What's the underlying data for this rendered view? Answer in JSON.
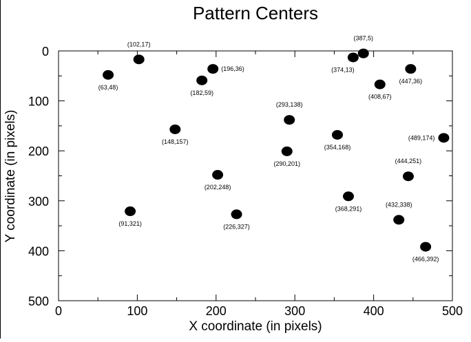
{
  "chart_data": {
    "type": "scatter",
    "title": "Pattern Centers",
    "xlabel": "X coordinate (in pixels)",
    "ylabel": "Y coordinate (in pixels)",
    "xlim": [
      0,
      500
    ],
    "ylim": [
      0,
      500
    ],
    "y_inverted": true,
    "grid": false,
    "xticks": [
      0,
      100,
      200,
      300,
      400,
      500
    ],
    "yticks": [
      0,
      100,
      200,
      300,
      400,
      500
    ],
    "x_minor_step": 50,
    "y_minor_step": 50,
    "marker_color": "#000000",
    "points": [
      {
        "x": 102,
        "y": 17,
        "label": "(102,17)",
        "label_pos": "above"
      },
      {
        "x": 387,
        "y": 5,
        "label": "(387,5)",
        "label_pos": "above"
      },
      {
        "x": 374,
        "y": 13,
        "label": "(374,13)",
        "label_pos": "below-left"
      },
      {
        "x": 63,
        "y": 48,
        "label": "(63,48)",
        "label_pos": "below"
      },
      {
        "x": 196,
        "y": 36,
        "label": "(196,36)",
        "label_pos": "right"
      },
      {
        "x": 182,
        "y": 59,
        "label": "(182,59)",
        "label_pos": "below"
      },
      {
        "x": 447,
        "y": 36,
        "label": "(447,36)",
        "label_pos": "below"
      },
      {
        "x": 408,
        "y": 67,
        "label": "(408,67)",
        "label_pos": "below"
      },
      {
        "x": 293,
        "y": 138,
        "label": "(293,138)",
        "label_pos": "above"
      },
      {
        "x": 148,
        "y": 157,
        "label": "(148,157)",
        "label_pos": "below"
      },
      {
        "x": 354,
        "y": 168,
        "label": "(354,168)",
        "label_pos": "below"
      },
      {
        "x": 489,
        "y": 174,
        "label": "(489,174)",
        "label_pos": "left"
      },
      {
        "x": 290,
        "y": 201,
        "label": "(290,201)",
        "label_pos": "below"
      },
      {
        "x": 444,
        "y": 251,
        "label": "(444,251)",
        "label_pos": "above"
      },
      {
        "x": 202,
        "y": 248,
        "label": "(202,248)",
        "label_pos": "below"
      },
      {
        "x": 368,
        "y": 291,
        "label": "(368,291)",
        "label_pos": "below"
      },
      {
        "x": 432,
        "y": 338,
        "label": "(432,338)",
        "label_pos": "above"
      },
      {
        "x": 91,
        "y": 321,
        "label": "(91,321)",
        "label_pos": "below"
      },
      {
        "x": 226,
        "y": 327,
        "label": "(226,327)",
        "label_pos": "below"
      },
      {
        "x": 466,
        "y": 392,
        "label": "(466,392)",
        "label_pos": "below"
      }
    ]
  }
}
